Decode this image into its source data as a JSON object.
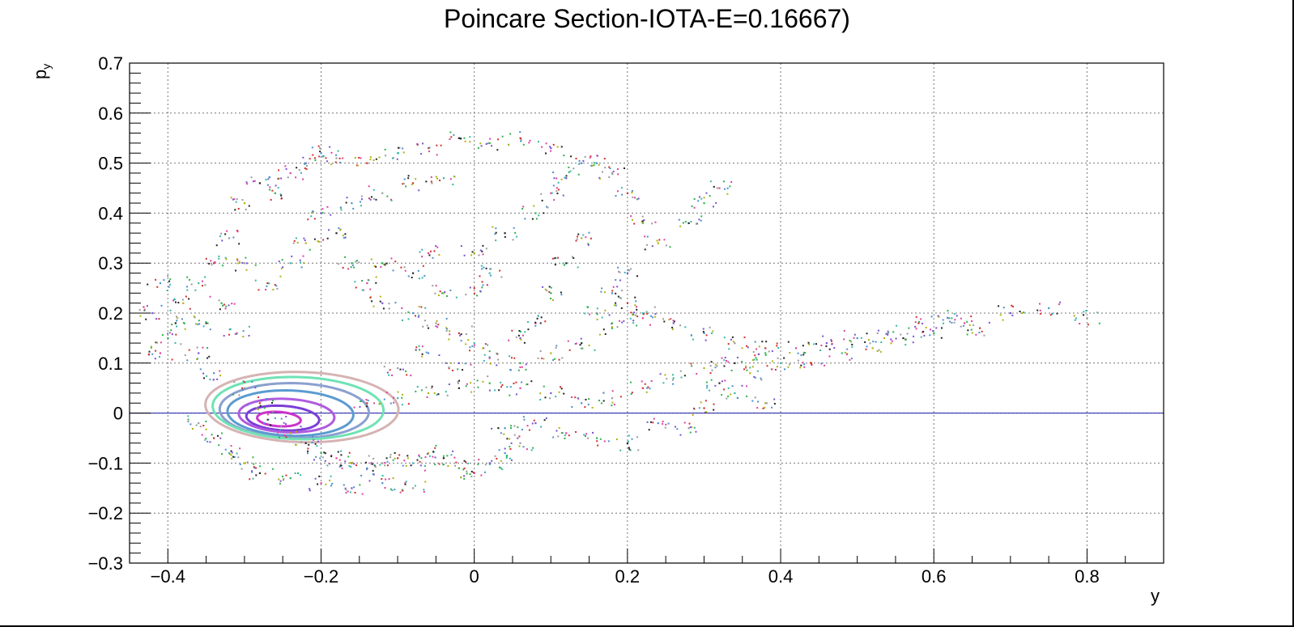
{
  "chart_data": {
    "type": "scatter",
    "title": "Poincare Section-IOTA-E=0.16667)",
    "xlabel": "y",
    "ylabel": "p",
    "ylabel_sub": "y",
    "xlim": [
      -0.45,
      0.9
    ],
    "ylim": [
      -0.3,
      0.7
    ],
    "x_ticks": [
      -0.4,
      -0.2,
      0,
      0.2,
      0.4,
      0.6,
      0.8
    ],
    "x_tick_labels": [
      "−0.4",
      "−0.2",
      "0",
      "0.2",
      "0.4",
      "0.6",
      "0.8"
    ],
    "y_ticks": [
      -0.3,
      -0.2,
      -0.1,
      0,
      0.1,
      0.2,
      0.3,
      0.4,
      0.5,
      0.6,
      0.7
    ],
    "y_tick_labels": [
      "−0.3",
      "−0.2",
      "−0.1",
      "0",
      "0.1",
      "0.2",
      "0.3",
      "0.4",
      "0.5",
      "0.6",
      "0.7"
    ],
    "grid": true,
    "reference_line": {
      "y": 0,
      "color": "#1a1aa6"
    },
    "point_colors": [
      "#222222",
      "#2bb24c",
      "#e040a0",
      "#7b4fd6",
      "#4a8fd0",
      "#9a9a9a",
      "#d2302a",
      "#35b8a8",
      "#b0b010"
    ],
    "series": [
      {
        "orbit": "chaotic-sea",
        "color": "mixed",
        "points": [
          [
            -0.35,
            0.18
          ],
          [
            -0.33,
            0.22
          ],
          [
            -0.31,
            0.16
          ],
          [
            -0.36,
            0.12
          ],
          [
            -0.34,
            0.08
          ],
          [
            -0.3,
            0.05
          ],
          [
            -0.28,
            0.02
          ],
          [
            -0.26,
            -0.01
          ],
          [
            -0.24,
            -0.04
          ],
          [
            -0.22,
            -0.06
          ],
          [
            -0.2,
            -0.08
          ],
          [
            -0.18,
            -0.09
          ],
          [
            -0.16,
            -0.1
          ],
          [
            -0.14,
            -0.11
          ],
          [
            -0.12,
            -0.1
          ],
          [
            -0.1,
            -0.09
          ],
          [
            -0.08,
            -0.1
          ],
          [
            -0.06,
            -0.08
          ],
          [
            -0.04,
            -0.09
          ],
          [
            -0.02,
            -0.11
          ],
          [
            0,
            -0.12
          ],
          [
            0.02,
            -0.1
          ],
          [
            0.04,
            -0.08
          ],
          [
            0.06,
            -0.06
          ],
          [
            -0.14,
            0.02
          ],
          [
            -0.1,
            0.03
          ],
          [
            -0.06,
            0.04
          ],
          [
            -0.02,
            0.05
          ],
          [
            0.02,
            0.06
          ],
          [
            0.06,
            0.05
          ],
          [
            0.1,
            0.04
          ],
          [
            0.14,
            0.02
          ],
          [
            0.18,
            0.03
          ],
          [
            0.22,
            0.05
          ],
          [
            0.26,
            0.07
          ],
          [
            0.3,
            0.09
          ],
          [
            0.34,
            0.1
          ],
          [
            0.38,
            0.12
          ],
          [
            0.42,
            0.13
          ],
          [
            0.46,
            0.14
          ],
          [
            0.5,
            0.15
          ],
          [
            0.54,
            0.16
          ],
          [
            0.58,
            0.18
          ],
          [
            0.62,
            0.19
          ],
          [
            0.1,
            0.12
          ],
          [
            0.14,
            0.14
          ],
          [
            0.18,
            0.17
          ],
          [
            0.22,
            0.19
          ],
          [
            0.26,
            0.18
          ],
          [
            0.3,
            0.16
          ],
          [
            0.34,
            0.14
          ],
          [
            0.38,
            0.13
          ],
          [
            0.4,
            0.1
          ],
          [
            0.36,
            0.08
          ],
          [
            0.32,
            0.06
          ],
          [
            0.06,
            0.1
          ],
          [
            0.02,
            0.11
          ],
          [
            -0.02,
            0.1
          ],
          [
            -0.06,
            0.12
          ],
          [
            -0.1,
            0.09
          ],
          [
            0.0,
            0.25
          ],
          [
            0.02,
            0.28
          ],
          [
            0.0,
            0.32
          ],
          [
            0.04,
            0.36
          ],
          [
            0.08,
            0.4
          ],
          [
            0.1,
            0.44
          ],
          [
            0.12,
            0.47
          ],
          [
            0.16,
            0.5
          ],
          [
            0.18,
            0.48
          ],
          [
            0.2,
            0.44
          ],
          [
            0.22,
            0.38
          ],
          [
            0.24,
            0.34
          ],
          [
            0.28,
            0.38
          ],
          [
            0.3,
            0.42
          ],
          [
            0.32,
            0.45
          ],
          [
            0.2,
            0.28
          ],
          [
            0.18,
            0.24
          ],
          [
            0.16,
            0.2
          ],
          [
            0.2,
            0.22
          ],
          [
            0.22,
            0.2
          ],
          [
            -0.3,
            0.42
          ],
          [
            -0.28,
            0.46
          ],
          [
            -0.26,
            0.44
          ],
          [
            -0.24,
            0.48
          ],
          [
            -0.22,
            0.5
          ],
          [
            -0.2,
            0.52
          ],
          [
            -0.18,
            0.51
          ],
          [
            -0.14,
            0.5
          ],
          [
            -0.1,
            0.52
          ],
          [
            -0.06,
            0.53
          ],
          [
            -0.02,
            0.55
          ],
          [
            0.02,
            0.54
          ],
          [
            0.06,
            0.55
          ],
          [
            0.1,
            0.53
          ],
          [
            0.14,
            0.5
          ],
          [
            -0.32,
            0.35
          ],
          [
            -0.34,
            0.3
          ],
          [
            -0.36,
            0.26
          ],
          [
            -0.38,
            0.22
          ],
          [
            -0.39,
            0.18
          ],
          [
            -0.4,
            0.15
          ],
          [
            -0.41,
            0.12
          ],
          [
            -0.42,
            0.2
          ],
          [
            -0.41,
            0.26
          ],
          [
            -0.3,
            0.3
          ],
          [
            -0.27,
            0.26
          ],
          [
            -0.24,
            0.3
          ],
          [
            -0.22,
            0.34
          ],
          [
            -0.18,
            0.36
          ],
          [
            -0.16,
            0.3
          ],
          [
            -0.14,
            0.26
          ],
          [
            -0.12,
            0.22
          ],
          [
            -0.08,
            0.2
          ],
          [
            -0.05,
            0.18
          ],
          [
            -0.02,
            0.16
          ],
          [
            0.0,
            0.14
          ],
          [
            -0.04,
            0.24
          ],
          [
            -0.08,
            0.28
          ],
          [
            -0.12,
            0.3
          ],
          [
            -0.06,
            0.32
          ],
          [
            -0.2,
            0.4
          ],
          [
            -0.16,
            0.42
          ],
          [
            -0.12,
            0.44
          ],
          [
            -0.08,
            0.46
          ],
          [
            -0.04,
            0.47
          ],
          [
            0.14,
            0.35
          ],
          [
            0.12,
            0.3
          ],
          [
            0.1,
            0.24
          ],
          [
            0.08,
            0.18
          ],
          [
            0.06,
            0.15
          ],
          [
            0.24,
            -0.02
          ],
          [
            0.28,
            -0.03
          ],
          [
            0.3,
            0.01
          ],
          [
            0.34,
            0.04
          ],
          [
            0.38,
            0.02
          ],
          [
            0.2,
            -0.06
          ],
          [
            0.16,
            -0.05
          ],
          [
            0.12,
            -0.04
          ],
          [
            0.08,
            -0.02
          ],
          [
            0.04,
            -0.03
          ],
          [
            -0.36,
            -0.02
          ],
          [
            -0.34,
            -0.05
          ],
          [
            -0.32,
            -0.08
          ],
          [
            -0.3,
            -0.1
          ],
          [
            -0.28,
            -0.12
          ],
          [
            -0.24,
            -0.13
          ],
          [
            -0.2,
            -0.14
          ],
          [
            -0.16,
            -0.15
          ],
          [
            -0.12,
            -0.14
          ],
          [
            -0.08,
            -0.15
          ],
          [
            0.44,
            0.1
          ],
          [
            0.48,
            0.12
          ],
          [
            0.52,
            0.13
          ],
          [
            0.56,
            0.15
          ],
          [
            0.6,
            0.16
          ],
          [
            0.64,
            0.18
          ],
          [
            0.7,
            0.2
          ],
          [
            0.75,
            0.21
          ],
          [
            0.8,
            0.19
          ],
          [
            0.66,
            0.17
          ]
        ]
      }
    ],
    "islands": [
      {
        "cx": -0.255,
        "cy": -0.012,
        "rx": 0.03,
        "ry": 0.014,
        "rot": -0.5,
        "color": "#cc33cc"
      },
      {
        "cx": -0.25,
        "cy": -0.01,
        "rx": 0.05,
        "ry": 0.024,
        "rot": -0.5,
        "color": "#7b3fd6"
      },
      {
        "cx": -0.245,
        "cy": -0.005,
        "rx": 0.065,
        "ry": 0.033,
        "rot": -0.5,
        "color": "#b05be0"
      },
      {
        "cx": -0.24,
        "cy": 0.0,
        "rx": 0.085,
        "ry": 0.045,
        "rot": -0.5,
        "color": "#5b9bd0"
      },
      {
        "cx": -0.235,
        "cy": 0.005,
        "rx": 0.1,
        "ry": 0.055,
        "rot": -0.5,
        "color": "#8aa0d0"
      },
      {
        "cx": -0.23,
        "cy": 0.01,
        "rx": 0.115,
        "ry": 0.062,
        "rot": -0.5,
        "color": "#6fe3b5"
      },
      {
        "cx": -0.225,
        "cy": 0.012,
        "rx": 0.13,
        "ry": 0.07,
        "rot": -0.5,
        "color": "#d6b3b3"
      }
    ]
  }
}
